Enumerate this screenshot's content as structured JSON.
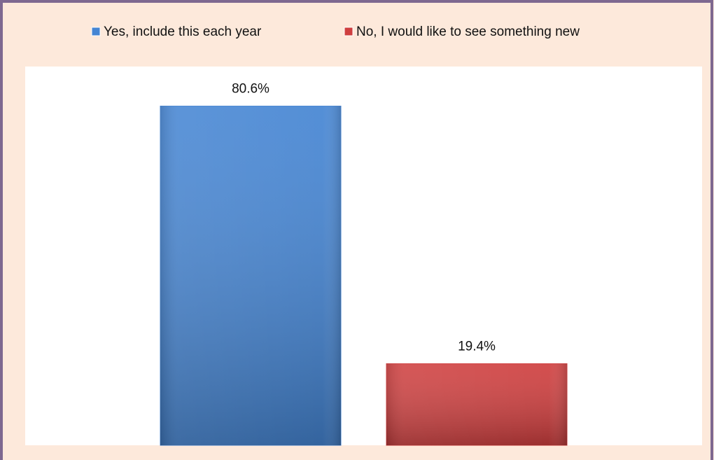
{
  "chart_data": {
    "type": "bar",
    "categories": [
      null
    ],
    "series": [
      {
        "name": "Yes, include this each year",
        "color": "#4585d3",
        "values": [
          80.6
        ],
        "value_labels": [
          "80.6%"
        ]
      },
      {
        "name": "No, I would like to see something new",
        "color": "#cf3f3f",
        "values": [
          19.4
        ],
        "value_labels": [
          "19.4%"
        ]
      }
    ],
    "ylim": [
      0,
      90
    ]
  }
}
